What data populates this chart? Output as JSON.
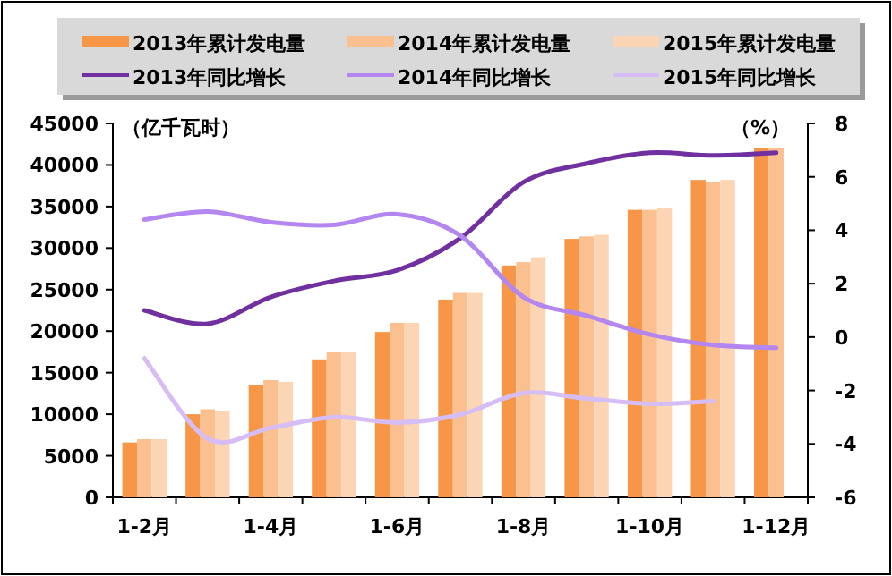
{
  "chart_data": {
    "type": "bar",
    "ylabel": "（亿千瓦时）",
    "y2label": "（%）",
    "legend": "top",
    "categories": [
      "1-2月",
      null,
      "1-4月",
      null,
      "1-6月",
      null,
      "1-8月",
      null,
      "1-10月",
      null,
      "1-12月"
    ],
    "ylim": [
      0,
      45000
    ],
    "yticks": [
      0,
      5000,
      10000,
      15000,
      20000,
      25000,
      30000,
      35000,
      40000,
      45000
    ],
    "y2lim": [
      -6,
      8
    ],
    "y2ticks": [
      -6,
      -4,
      -2,
      0,
      2,
      4,
      6,
      8
    ],
    "series": [
      {
        "name": "2013年累计发电量",
        "color": "#f79646",
        "values": [
          6600,
          10000,
          13500,
          16600,
          19900,
          23800,
          27900,
          31100,
          34600,
          38200,
          42000
        ]
      },
      {
        "name": "2014年累计发电量",
        "color": "#fac090",
        "values": [
          7000,
          10600,
          14100,
          17500,
          21000,
          24600,
          28300,
          31400,
          34600,
          38000,
          42000
        ]
      },
      {
        "name": "2015年累计发电量",
        "color": "#fcd5b5",
        "values": [
          7000,
          10400,
          13900,
          17500,
          21000,
          24600,
          28900,
          31600,
          34800,
          38200,
          null
        ]
      },
      {
        "name": "2013年同比增长",
        "type": "line",
        "axis": "y2",
        "color": "#7030a0",
        "values": [
          1.0,
          0.5,
          1.5,
          2.1,
          2.5,
          3.7,
          5.8,
          6.5,
          6.9,
          6.8,
          6.9
        ]
      },
      {
        "name": "2014年同比增长",
        "type": "line",
        "axis": "y2",
        "color": "#b386f0",
        "values": [
          4.4,
          4.7,
          4.3,
          4.2,
          4.6,
          3.8,
          1.5,
          0.8,
          0.1,
          -0.3,
          -0.4
        ]
      },
      {
        "name": "2015年同比增长",
        "type": "line",
        "axis": "y2",
        "color": "#d7bdf6",
        "values": [
          -0.8,
          -3.8,
          -3.4,
          -3.0,
          -3.2,
          -2.9,
          -2.1,
          -2.3,
          -2.5,
          -2.4,
          null
        ]
      }
    ]
  }
}
